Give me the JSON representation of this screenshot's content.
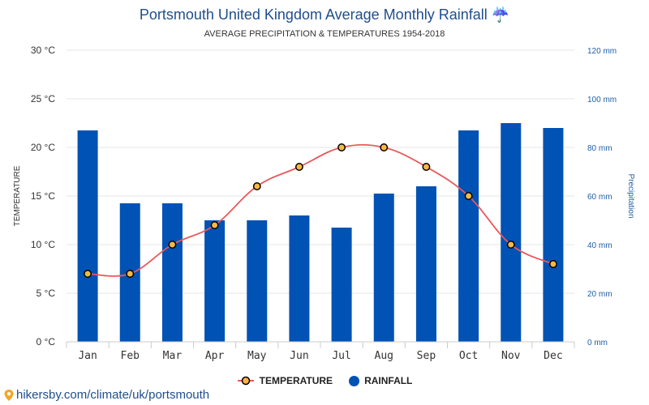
{
  "header": {
    "title": "Portsmouth United Kingdom Average Monthly Rainfall ☔",
    "subtitle": "AVERAGE PRECIPITATION & TEMPERATURES 1954-2018"
  },
  "footer": {
    "source": "hikersby.com/climate/uk/portsmouth",
    "icon": "location-pin-icon"
  },
  "colors": {
    "rainfall": "#0052b4",
    "temperature_line": "#e8595b",
    "temperature_marker": "#f5b942",
    "marker_stroke": "#000000",
    "grid": "#e6e6e6"
  },
  "chart_data": {
    "type": "bar",
    "title": "Portsmouth United Kingdom Average Monthly Rainfall ☔",
    "subtitle": "AVERAGE PRECIPITATION & TEMPERATURES 1954-2018",
    "categories": [
      "Jan",
      "Feb",
      "Mar",
      "Apr",
      "May",
      "Jun",
      "Jul",
      "Aug",
      "Sep",
      "Oct",
      "Nov",
      "Dec"
    ],
    "series": [
      {
        "name": "RAINFALL",
        "type": "bar",
        "axis": "right",
        "values": [
          87,
          57,
          57,
          50,
          50,
          52,
          47,
          61,
          64,
          87,
          90,
          88
        ]
      },
      {
        "name": "TEMPERATURE",
        "type": "line",
        "axis": "left",
        "values": [
          7,
          7,
          10,
          12,
          16,
          18,
          20,
          20,
          18,
          15,
          10,
          8
        ]
      }
    ],
    "y_left": {
      "label": "TEMPERATURE",
      "range": [
        0,
        30
      ],
      "ticks": [
        0,
        5,
        10,
        15,
        20,
        25,
        30
      ],
      "tick_labels": [
        "0 °C",
        "5 °C",
        "10 °C",
        "15 °C",
        "20 °C",
        "25 °C",
        "30 °C"
      ]
    },
    "y_right": {
      "label": "Precipitation",
      "range": [
        0,
        120
      ],
      "ticks": [
        0,
        20,
        40,
        60,
        80,
        100,
        120
      ],
      "tick_labels": [
        "0 mm",
        "20 mm",
        "40 mm",
        "60 mm",
        "80 mm",
        "100 mm",
        "120 mm"
      ]
    },
    "grid": true,
    "legend": "bottom-center"
  }
}
